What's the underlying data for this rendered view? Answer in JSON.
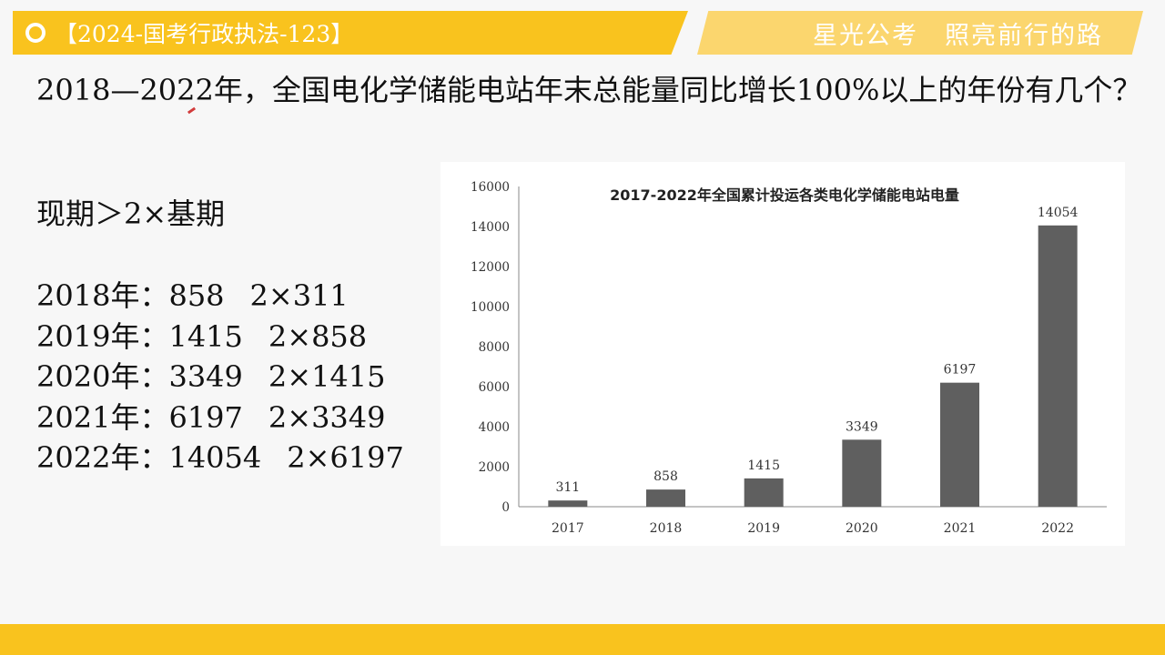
{
  "header": {
    "title": "【2024-国考行政执法-123】",
    "slogan": "星光公考　照亮前行的路",
    "accent_color": "#f9c31e",
    "icon": "circle-icon"
  },
  "question": {
    "text": "2018—2022年，全国电化学储能电站年末总能量同比增长100%以上的年份有几个？"
  },
  "notes": {
    "formula": "现期＞2×基期",
    "rows": [
      {
        "year": "2018年：",
        "current": "858",
        "base": "2×311"
      },
      {
        "year": "2019年：",
        "current": "1415",
        "base": "2×858"
      },
      {
        "year": "2020年：",
        "current": "3349",
        "base": "2×1415"
      },
      {
        "year": "2021年：",
        "current": "6197",
        "base": "2×3349"
      },
      {
        "year": "2022年：",
        "current": "14054",
        "base": "2×6197"
      }
    ]
  },
  "chart_data": {
    "type": "bar",
    "title": "2017-2022年全国累计投运各类电化学储能电站电量",
    "categories": [
      "2017",
      "2018",
      "2019",
      "2020",
      "2021",
      "2022"
    ],
    "values": [
      311,
      858,
      1415,
      3349,
      6197,
      14054
    ],
    "data_labels": [
      "311",
      "858",
      "1415",
      "3349",
      "6197",
      "14054"
    ],
    "ylim": [
      0,
      16000
    ],
    "yticks": [
      0,
      2000,
      4000,
      6000,
      8000,
      10000,
      12000,
      14000,
      16000
    ],
    "ytick_labels": [
      "0",
      "2000",
      "4000",
      "6000",
      "8000",
      "10000",
      "12000",
      "14000",
      "16000"
    ],
    "xlabel": "",
    "ylabel": "",
    "bar_color": "#5f5f5f",
    "grid": false,
    "legend": "none"
  }
}
